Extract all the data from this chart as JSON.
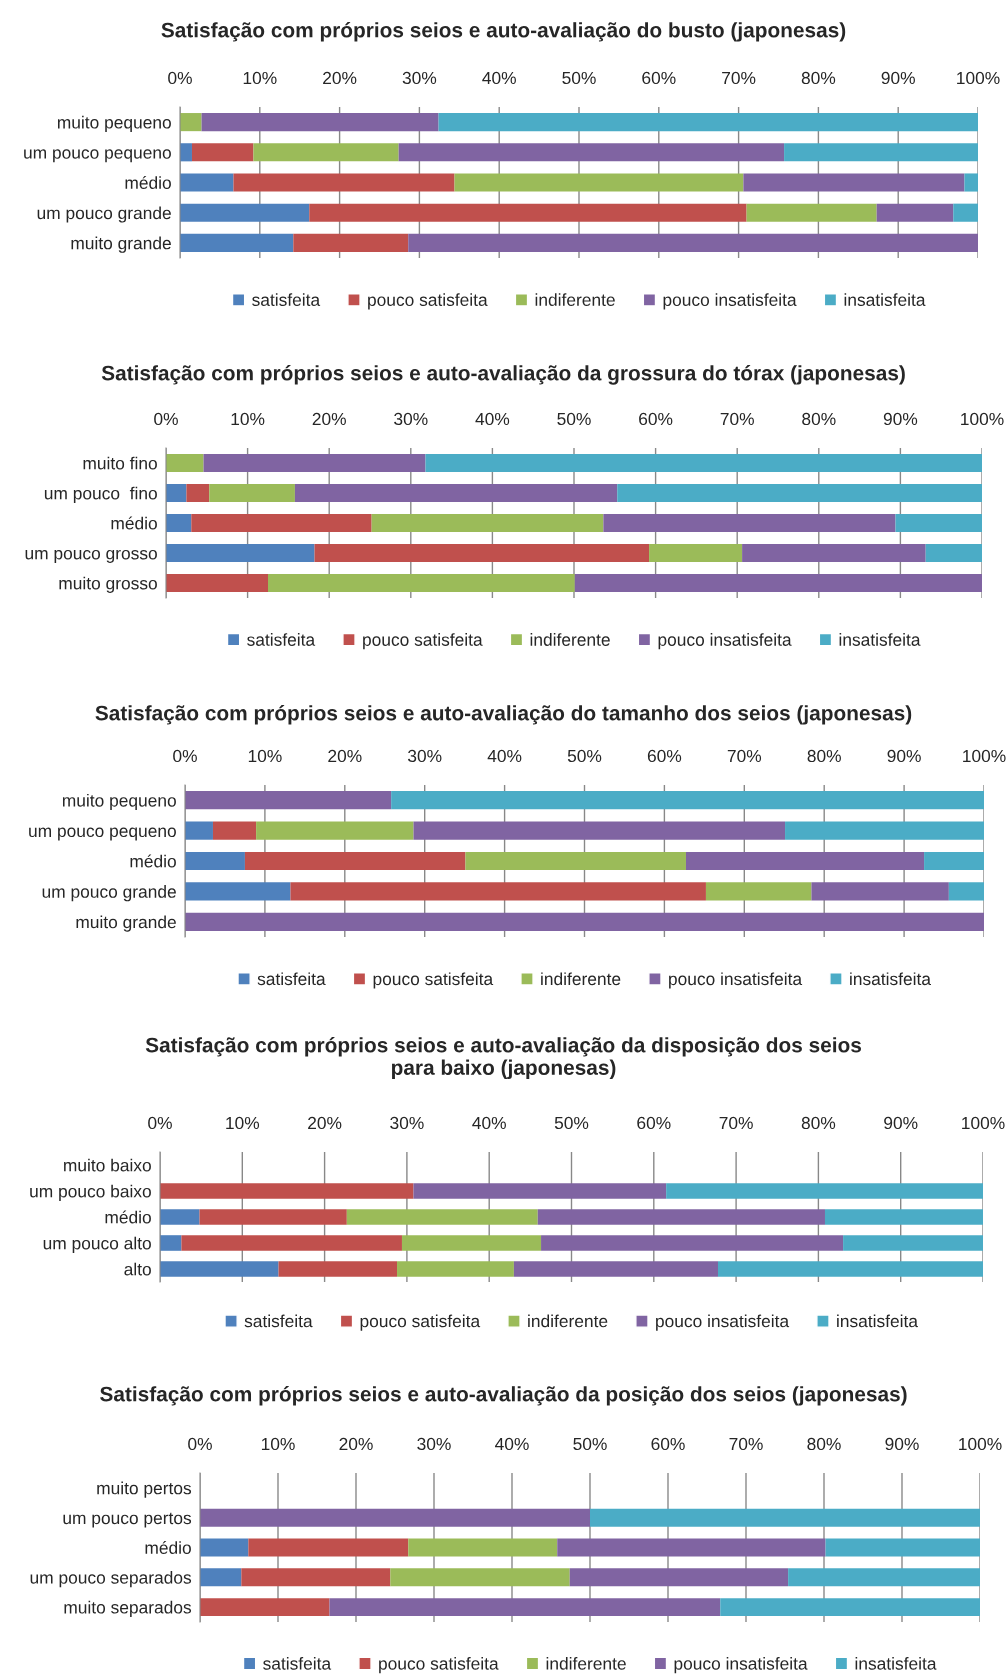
{
  "chart_data": [
    {
      "type": "bar",
      "orientation": "horizontal",
      "stacked": true,
      "title": "Satisfação com próprios seios e auto-avaliação do busto (japonesas)",
      "categories": [
        "muito pequeno",
        "um pouco pequeno",
        "médio",
        "um pouco grande",
        "muito grande"
      ],
      "xlim": [
        0,
        100
      ],
      "xticks": [
        {
          "value": 0,
          "label": "0%"
        },
        {
          "value": 10,
          "label": "10%"
        },
        {
          "value": 20,
          "label": "20%"
        },
        {
          "value": 30,
          "label": "30%"
        },
        {
          "value": 40,
          "label": "40%"
        },
        {
          "value": 50,
          "label": "50%"
        },
        {
          "value": 60,
          "label": "60%"
        },
        {
          "value": 70,
          "label": "70%"
        },
        {
          "value": 80,
          "label": "80%"
        },
        {
          "value": 90,
          "label": "90%"
        },
        {
          "value": 100,
          "label": "100%"
        }
      ],
      "grid": "x",
      "legend": "bottom",
      "series": [
        {
          "name": "satisfeita",
          "color": "#4f81bd",
          "values": [
            null,
            1.5,
            6.7,
            16.2,
            14.2
          ]
        },
        {
          "name": "pouco satisfeita",
          "color": "#c0504d",
          "values": [
            null,
            7.7,
            27.7,
            54.8,
            14.4
          ]
        },
        {
          "name": "indiferente",
          "color": "#9bbb59",
          "values": [
            2.7,
            18.2,
            36.2,
            16.3,
            null
          ]
        },
        {
          "name": "pouco insatisfeita",
          "color": "#8064a2",
          "values": [
            29.7,
            48.3,
            27.7,
            9.6,
            71.4
          ]
        },
        {
          "name": "insatisfeita",
          "color": "#4bacc6",
          "values": [
            67.6,
            24.3,
            1.7,
            3.1,
            null
          ]
        }
      ]
    },
    {
      "type": "bar",
      "orientation": "horizontal",
      "stacked": true,
      "title": "Satisfação com próprios seios e auto-avaliação da grossura do tórax (japonesas)",
      "categories": [
        "muito fino",
        "um pouco  fino",
        "médio",
        "um pouco grosso",
        "muito grosso"
      ],
      "xlim": [
        0,
        100
      ],
      "xticks": [
        {
          "value": 0,
          "label": "0%"
        },
        {
          "value": 10,
          "label": "10%"
        },
        {
          "value": 20,
          "label": "20%"
        },
        {
          "value": 30,
          "label": "30%"
        },
        {
          "value": 40,
          "label": "40%"
        },
        {
          "value": 50,
          "label": "50%"
        },
        {
          "value": 60,
          "label": "60%"
        },
        {
          "value": 70,
          "label": "70%"
        },
        {
          "value": 80,
          "label": "80%"
        },
        {
          "value": 90,
          "label": "90%"
        },
        {
          "value": 100,
          "label": "100%"
        }
      ],
      "grid": "x",
      "legend": "bottom",
      "series": [
        {
          "name": "satisfeita",
          "color": "#4f81bd",
          "values": [
            null,
            2.5,
            3.1,
            18.2,
            null
          ]
        },
        {
          "name": "pouco satisfeita",
          "color": "#c0504d",
          "values": [
            null,
            2.8,
            22.1,
            41.0,
            12.5
          ]
        },
        {
          "name": "indiferente",
          "color": "#9bbb59",
          "values": [
            4.6,
            10.5,
            28.4,
            11.4,
            37.6
          ]
        },
        {
          "name": "pouco insatisfeita",
          "color": "#8064a2",
          "values": [
            27.2,
            39.5,
            35.8,
            22.5,
            49.9
          ]
        },
        {
          "name": "insatisfeita",
          "color": "#4bacc6",
          "values": [
            68.2,
            44.7,
            10.6,
            6.9,
            null
          ]
        }
      ]
    },
    {
      "type": "bar",
      "orientation": "horizontal",
      "stacked": true,
      "title": "Satisfação com próprios seios e auto-avaliação do tamanho dos seios (japonesas)",
      "categories": [
        "muito pequeno",
        "um pouco pequeno",
        "médio",
        "um pouco grande",
        "muito grande"
      ],
      "xlim": [
        0,
        100
      ],
      "xticks": [
        {
          "value": 0,
          "label": "0%"
        },
        {
          "value": 10,
          "label": "10%"
        },
        {
          "value": 20,
          "label": "20%"
        },
        {
          "value": 30,
          "label": "30%"
        },
        {
          "value": 40,
          "label": "40%"
        },
        {
          "value": 50,
          "label": "50%"
        },
        {
          "value": 60,
          "label": "60%"
        },
        {
          "value": 70,
          "label": "70%"
        },
        {
          "value": 80,
          "label": "80%"
        },
        {
          "value": 90,
          "label": "90%"
        },
        {
          "value": 100,
          "label": "100%"
        }
      ],
      "grid": "x",
      "legend": "bottom",
      "series": [
        {
          "name": "satisfeita",
          "color": "#4f81bd",
          "values": [
            null,
            3.5,
            7.5,
            13.2,
            null
          ]
        },
        {
          "name": "pouco satisfeita",
          "color": "#c0504d",
          "values": [
            null,
            5.4,
            27.6,
            52.0,
            null
          ]
        },
        {
          "name": "indiferente",
          "color": "#9bbb59",
          "values": [
            null,
            19.7,
            27.6,
            13.2,
            null
          ]
        },
        {
          "name": "pouco insatisfeita",
          "color": "#8064a2",
          "values": [
            25.8,
            46.5,
            29.8,
            17.2,
            100
          ]
        },
        {
          "name": "insatisfeita",
          "color": "#4bacc6",
          "values": [
            74.2,
            24.9,
            7.5,
            4.4,
            null
          ]
        }
      ]
    },
    {
      "type": "bar",
      "orientation": "horizontal",
      "stacked": true,
      "title": "Satisfação com próprios seios e auto-avaliação da disposição dos seios\npara baixo (japonesas)",
      "categories": [
        "muito baixo",
        "um pouco baixo",
        "médio",
        "um pouco alto",
        "alto"
      ],
      "xlim": [
        0,
        100
      ],
      "xticks": [
        {
          "value": 0,
          "label": "0%"
        },
        {
          "value": 10,
          "label": "10%"
        },
        {
          "value": 20,
          "label": "20%"
        },
        {
          "value": 30,
          "label": "30%"
        },
        {
          "value": 40,
          "label": "40%"
        },
        {
          "value": 50,
          "label": "50%"
        },
        {
          "value": 60,
          "label": "60%"
        },
        {
          "value": 70,
          "label": "70%"
        },
        {
          "value": 80,
          "label": "80%"
        },
        {
          "value": 90,
          "label": "90%"
        },
        {
          "value": 100,
          "label": "100%"
        }
      ],
      "grid": "x",
      "legend": "bottom",
      "series": [
        {
          "name": "satisfeita",
          "color": "#4f81bd",
          "values": [
            null,
            null,
            4.8,
            2.6,
            14.4
          ]
        },
        {
          "name": "pouco satisfeita",
          "color": "#c0504d",
          "values": [
            null,
            30.8,
            17.9,
            26.8,
            14.4
          ]
        },
        {
          "name": "indiferente",
          "color": "#9bbb59",
          "values": [
            null,
            null,
            23.2,
            16.9,
            14.2
          ]
        },
        {
          "name": "pouco insatisfeita",
          "color": "#8064a2",
          "values": [
            null,
            30.7,
            34.9,
            36.7,
            24.8
          ]
        },
        {
          "name": "insatisfeita",
          "color": "#4bacc6",
          "values": [
            null,
            38.5,
            19.2,
            17.0,
            32.2
          ]
        }
      ]
    },
    {
      "type": "bar",
      "orientation": "horizontal",
      "stacked": true,
      "title": "Satisfação com próprios seios e auto-avaliação da posição dos seios (japonesas)",
      "categories": [
        "muito pertos",
        "um pouco pertos",
        "médio",
        "um pouco separados",
        "muito separados"
      ],
      "xlim": [
        0,
        100
      ],
      "xticks": [
        {
          "value": 0,
          "label": "0%"
        },
        {
          "value": 10,
          "label": "10%"
        },
        {
          "value": 20,
          "label": "20%"
        },
        {
          "value": 30,
          "label": "30%"
        },
        {
          "value": 40,
          "label": "40%"
        },
        {
          "value": 50,
          "label": "50%"
        },
        {
          "value": 60,
          "label": "60%"
        },
        {
          "value": 70,
          "label": "70%"
        },
        {
          "value": 80,
          "label": "80%"
        },
        {
          "value": 90,
          "label": "90%"
        },
        {
          "value": 100,
          "label": "100%"
        }
      ],
      "grid": "x",
      "legend": "bottom",
      "series": [
        {
          "name": "satisfeita",
          "color": "#4f81bd",
          "values": [
            null,
            null,
            6.2,
            5.3,
            null
          ]
        },
        {
          "name": "pouco satisfeita",
          "color": "#c0504d",
          "values": [
            null,
            null,
            20.5,
            19.1,
            16.6
          ]
        },
        {
          "name": "indiferente",
          "color": "#9bbb59",
          "values": [
            null,
            null,
            19.1,
            23.0,
            null
          ]
        },
        {
          "name": "pouco insatisfeita",
          "color": "#8064a2",
          "values": [
            null,
            50.0,
            34.4,
            28.0,
            50.1
          ]
        },
        {
          "name": "insatisfeita",
          "color": "#4bacc6",
          "values": [
            null,
            50.0,
            19.8,
            24.6,
            33.3
          ]
        }
      ]
    }
  ]
}
